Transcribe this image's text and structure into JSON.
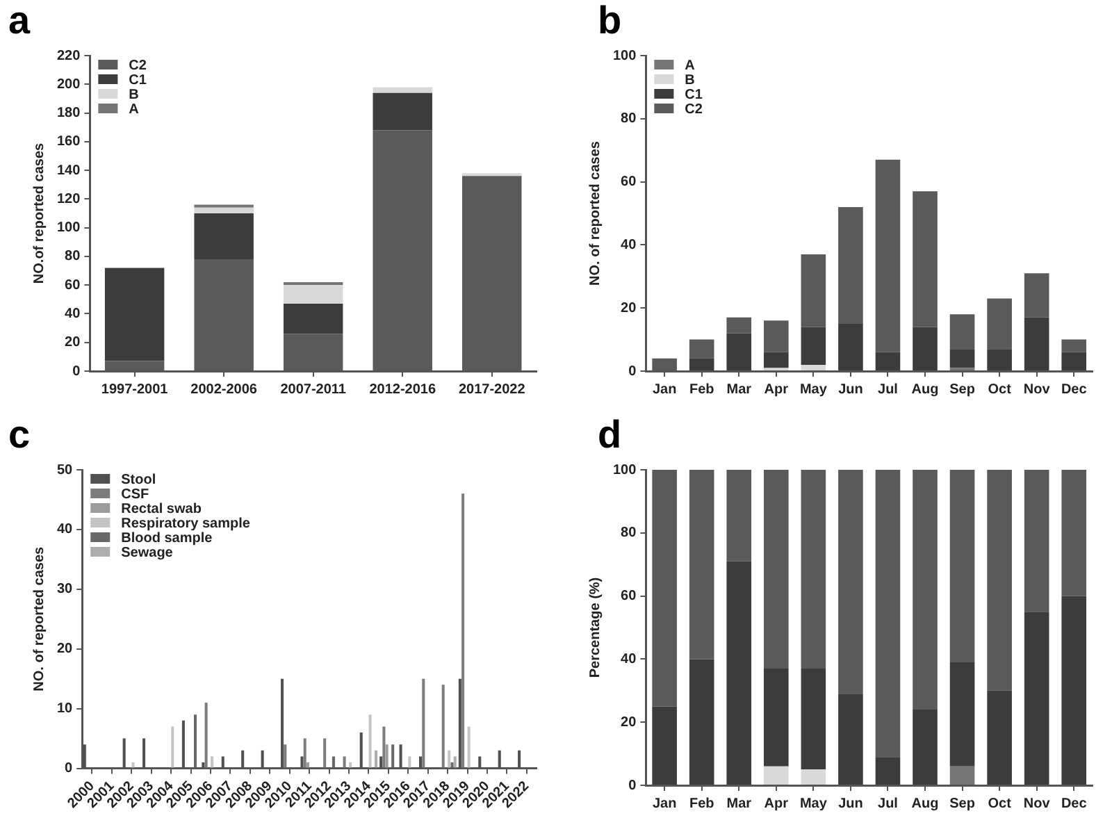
{
  "chart_data": [
    {
      "type": "bar",
      "title": "a",
      "ylabel": "NO.of reported cases",
      "stacked": true,
      "legend": "top left",
      "categories": [
        "1997-2001",
        "2002-2006",
        "2007-2011",
        "2012-2016",
        "2017-2022"
      ],
      "ylim": [
        0,
        220
      ],
      "yticks": [
        0,
        20,
        40,
        60,
        80,
        100,
        120,
        140,
        160,
        180,
        200,
        220
      ],
      "series": [
        {
          "name": "C2",
          "color": "#5a5a5a",
          "values": [
            7,
            78,
            26,
            168,
            136
          ]
        },
        {
          "name": "C1",
          "color": "#3c3c3c",
          "values": [
            65,
            32,
            21,
            26,
            0
          ]
        },
        {
          "name": "B",
          "color": "#d9d9d9",
          "values": [
            0,
            4,
            13,
            4,
            2
          ]
        },
        {
          "name": "A",
          "color": "#767676",
          "values": [
            0,
            2,
            2,
            0,
            0
          ]
        }
      ]
    },
    {
      "type": "bar",
      "title": "b",
      "ylabel": "NO. of reported cases",
      "stacked": true,
      "legend": "top left",
      "categories": [
        "Jan",
        "Feb",
        "Mar",
        "Apr",
        "May",
        "Jun",
        "Jul",
        "Aug",
        "Sep",
        "Oct",
        "Nov",
        "Dec"
      ],
      "ylim": [
        0,
        100
      ],
      "yticks": [
        0,
        20,
        40,
        60,
        80,
        100
      ],
      "series": [
        {
          "name": "A",
          "color": "#767676",
          "values": [
            0,
            0,
            0,
            0,
            0,
            0,
            0,
            0,
            1,
            0,
            0,
            0
          ]
        },
        {
          "name": "B",
          "color": "#d9d9d9",
          "values": [
            0,
            0,
            0,
            1,
            2,
            0,
            0,
            0,
            0,
            0,
            0,
            0
          ]
        },
        {
          "name": "C1",
          "color": "#3c3c3c",
          "values": [
            0,
            4,
            12,
            5,
            12,
            15,
            6,
            14,
            6,
            7,
            17,
            6
          ]
        },
        {
          "name": "C2",
          "color": "#5a5a5a",
          "values": [
            4,
            6,
            5,
            10,
            23,
            37,
            61,
            43,
            11,
            16,
            14,
            4
          ]
        }
      ]
    },
    {
      "type": "bar",
      "title": "c",
      "ylabel": "NO. of reported cases",
      "legend": "top left",
      "categories": [
        "2000",
        "2001",
        "2002",
        "2003",
        "2004",
        "2005",
        "2006",
        "2007",
        "2008",
        "2009",
        "2010",
        "2011",
        "2012",
        "2013",
        "2014",
        "2015",
        "2016",
        "2017",
        "2018",
        "2019",
        "2020",
        "2021",
        "2022"
      ],
      "ylim": [
        0,
        50
      ],
      "yticks": [
        0,
        10,
        20,
        30,
        40,
        50
      ],
      "series": [
        {
          "name": "Stool",
          "color": "#505050",
          "values": [
            4,
            null,
            5,
            5,
            null,
            8,
            1,
            2,
            3,
            3,
            15,
            2,
            null,
            null,
            6,
            2,
            4,
            2,
            null,
            15,
            2,
            3,
            3
          ]
        },
        {
          "name": "CSF",
          "color": "#7c7c7c",
          "values": [
            null,
            null,
            null,
            null,
            null,
            null,
            11,
            null,
            null,
            null,
            4,
            5,
            5,
            2,
            null,
            7,
            null,
            15,
            14,
            46,
            null,
            null,
            null
          ]
        },
        {
          "name": "Rectal swab",
          "color": "#9c9c9c",
          "values": [
            null,
            null,
            null,
            null,
            null,
            null,
            null,
            null,
            null,
            null,
            null,
            1,
            null,
            null,
            null,
            4,
            null,
            null,
            null,
            null,
            null,
            null,
            null
          ]
        },
        {
          "name": "Respiratory sample",
          "color": "#c4c4c4",
          "values": [
            null,
            null,
            1,
            null,
            7,
            null,
            2,
            null,
            null,
            null,
            null,
            null,
            null,
            1,
            9,
            null,
            2,
            null,
            3,
            7,
            null,
            null,
            null
          ]
        },
        {
          "name": "Blood sample",
          "color": "#686868",
          "values": [
            null,
            null,
            null,
            null,
            null,
            9,
            null,
            null,
            null,
            null,
            null,
            null,
            2,
            null,
            null,
            4,
            null,
            null,
            1,
            null,
            null,
            null,
            null
          ]
        },
        {
          "name": "Sewage",
          "color": "#adadad",
          "values": [
            null,
            null,
            null,
            null,
            null,
            null,
            null,
            null,
            null,
            null,
            null,
            null,
            null,
            null,
            3,
            null,
            null,
            null,
            2,
            null,
            null,
            null,
            null
          ]
        }
      ]
    },
    {
      "type": "bar",
      "title": "d",
      "ylabel": "Percentage (%)",
      "stacked": true,
      "categories": [
        "Jan",
        "Feb",
        "Mar",
        "Apr",
        "May",
        "Jun",
        "Jul",
        "Aug",
        "Sep",
        "Oct",
        "Nov",
        "Dec"
      ],
      "ylim": [
        0,
        100
      ],
      "yticks": [
        0,
        20,
        40,
        60,
        80,
        100
      ],
      "series": [
        {
          "color": "#767676",
          "values": [
            0,
            0,
            0,
            0,
            0,
            0,
            0,
            0,
            6,
            0,
            0,
            0
          ]
        },
        {
          "color": "#d9d9d9",
          "values": [
            0,
            0,
            0,
            6,
            5,
            0,
            0,
            0,
            0,
            0,
            0,
            0
          ]
        },
        {
          "color": "#3c3c3c",
          "values": [
            25,
            40,
            71,
            31,
            32,
            29,
            9,
            24,
            33,
            30,
            55,
            60
          ]
        },
        {
          "color": "#5a5a5a",
          "values": [
            75,
            60,
            29,
            63,
            63,
            71,
            91,
            76,
            61,
            70,
            45,
            40
          ]
        }
      ]
    }
  ]
}
